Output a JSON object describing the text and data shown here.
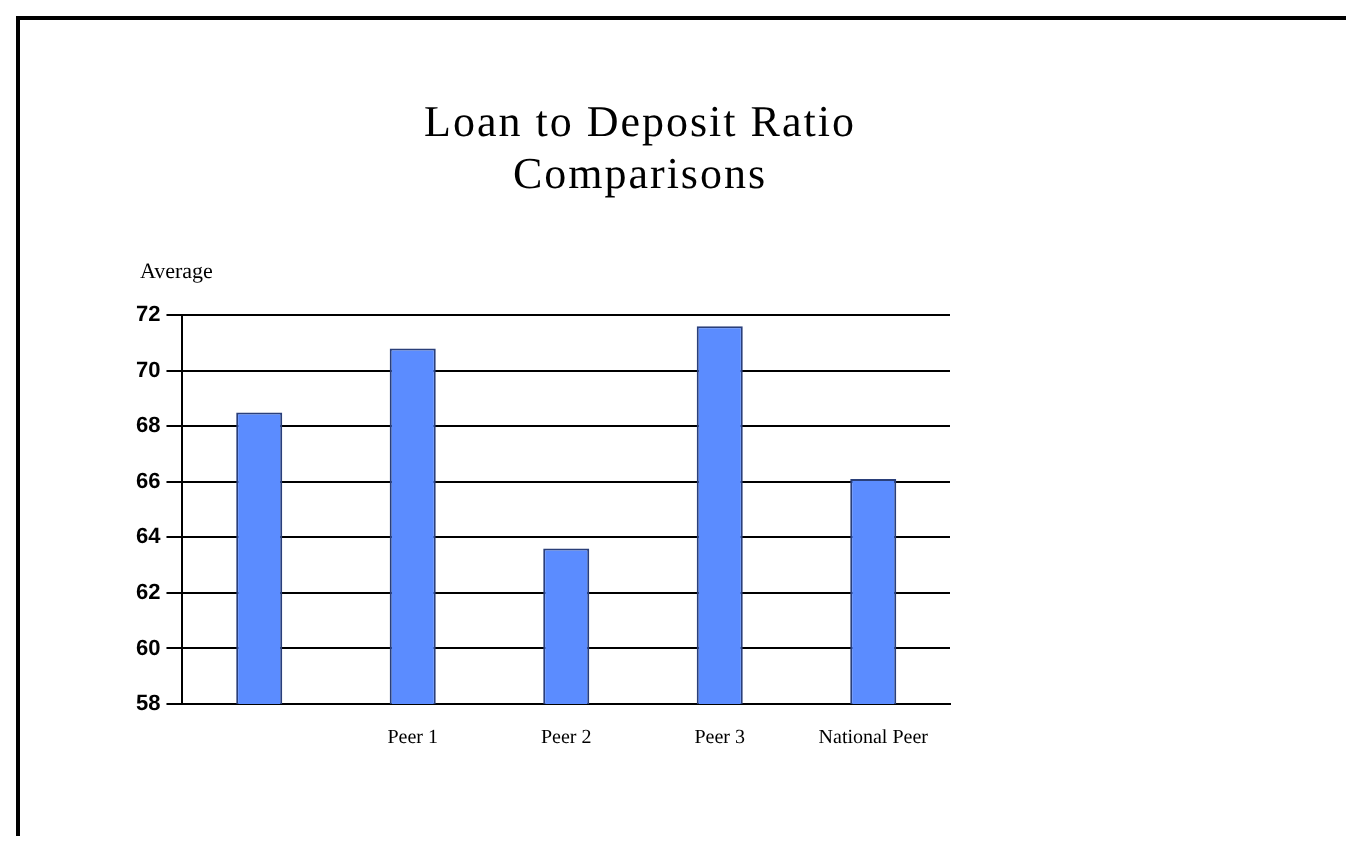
{
  "chart_data": {
    "type": "bar",
    "title": "Loan to Deposit Ratio Comparisons",
    "ylabel": "Average",
    "categories": [
      null,
      "Peer 1",
      "Peer 2",
      "Peer 3",
      "National Peer"
    ],
    "values": [
      68.5,
      70.8,
      63.6,
      71.6,
      66.1
    ],
    "color": "#5b8cff",
    "ylim": [
      58,
      72
    ],
    "yticks": [
      58,
      60,
      62,
      64,
      66,
      68,
      70,
      72
    ],
    "grid": "y"
  }
}
